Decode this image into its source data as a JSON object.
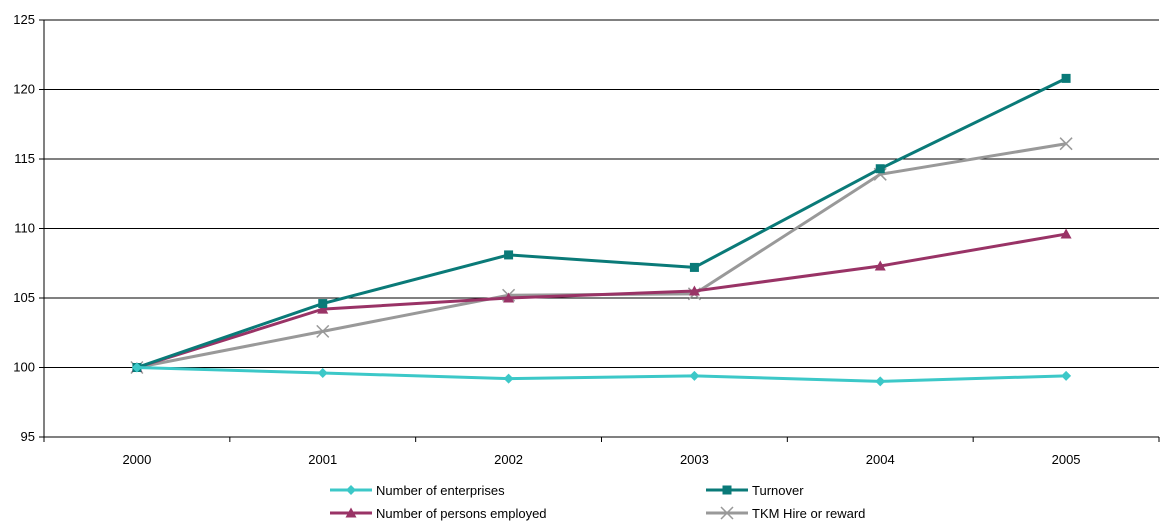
{
  "chart_data": {
    "type": "line",
    "title": "",
    "xlabel": "",
    "ylabel": "",
    "categories": [
      "2000",
      "2001",
      "2002",
      "2003",
      "2004",
      "2005"
    ],
    "ylim": [
      95,
      125
    ],
    "yticks": [
      95,
      100,
      105,
      110,
      115,
      120,
      125
    ],
    "grid": "horizontal",
    "legend_position": "bottom",
    "series": [
      {
        "name": "Number of enterprises",
        "color": "#3cc8c8",
        "marker": "diamond",
        "values": [
          100,
          99.6,
          99.2,
          99.4,
          99.0,
          99.4
        ]
      },
      {
        "name": "Turnover",
        "color": "#0a7a78",
        "marker": "square",
        "values": [
          100,
          104.6,
          108.1,
          107.2,
          114.3,
          120.8
        ]
      },
      {
        "name": "Number of persons employed",
        "color": "#993366",
        "marker": "triangle",
        "values": [
          100,
          104.2,
          105.0,
          105.5,
          107.3,
          109.6
        ]
      },
      {
        "name": "TKM Hire or reward",
        "color": "#999999",
        "marker": "x",
        "values": [
          100,
          102.6,
          105.2,
          105.3,
          113.9,
          116.1
        ]
      }
    ]
  }
}
